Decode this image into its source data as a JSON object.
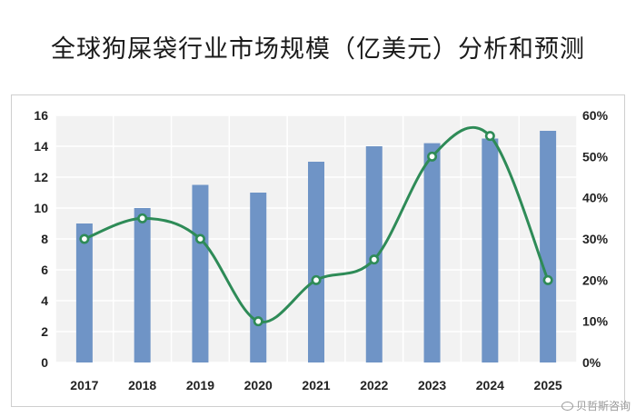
{
  "title": "全球狗屎袋行业市场规模（亿美元）分析和预测",
  "watermark": "贝哲斯咨询",
  "chart_data": {
    "type": "bar",
    "categories": [
      "2017",
      "2018",
      "2019",
      "2020",
      "2021",
      "2022",
      "2023",
      "2024",
      "2025"
    ],
    "series": [
      {
        "type": "bar",
        "axis": "left",
        "values": [
          9.0,
          10.0,
          11.5,
          11.0,
          13.0,
          14.0,
          14.2,
          14.5,
          15.0
        ],
        "color": "#6f94c6"
      },
      {
        "type": "line",
        "axis": "right",
        "smooth": true,
        "values": [
          30,
          35,
          30,
          10,
          20,
          25,
          50,
          55,
          20
        ],
        "color": "#2e8b57"
      }
    ],
    "y_left": {
      "min": 0,
      "max": 16,
      "step": 2,
      "ticks": [
        "0",
        "2",
        "4",
        "6",
        "8",
        "10",
        "12",
        "14",
        "16"
      ]
    },
    "y_right": {
      "min": 0,
      "max": 60,
      "step": 10,
      "ticks": [
        "0%",
        "10%",
        "20%",
        "30%",
        "40%",
        "50%",
        "60%"
      ]
    },
    "grid": true,
    "plot_background": "#f2f2f2",
    "grid_color": "#ffffff"
  }
}
